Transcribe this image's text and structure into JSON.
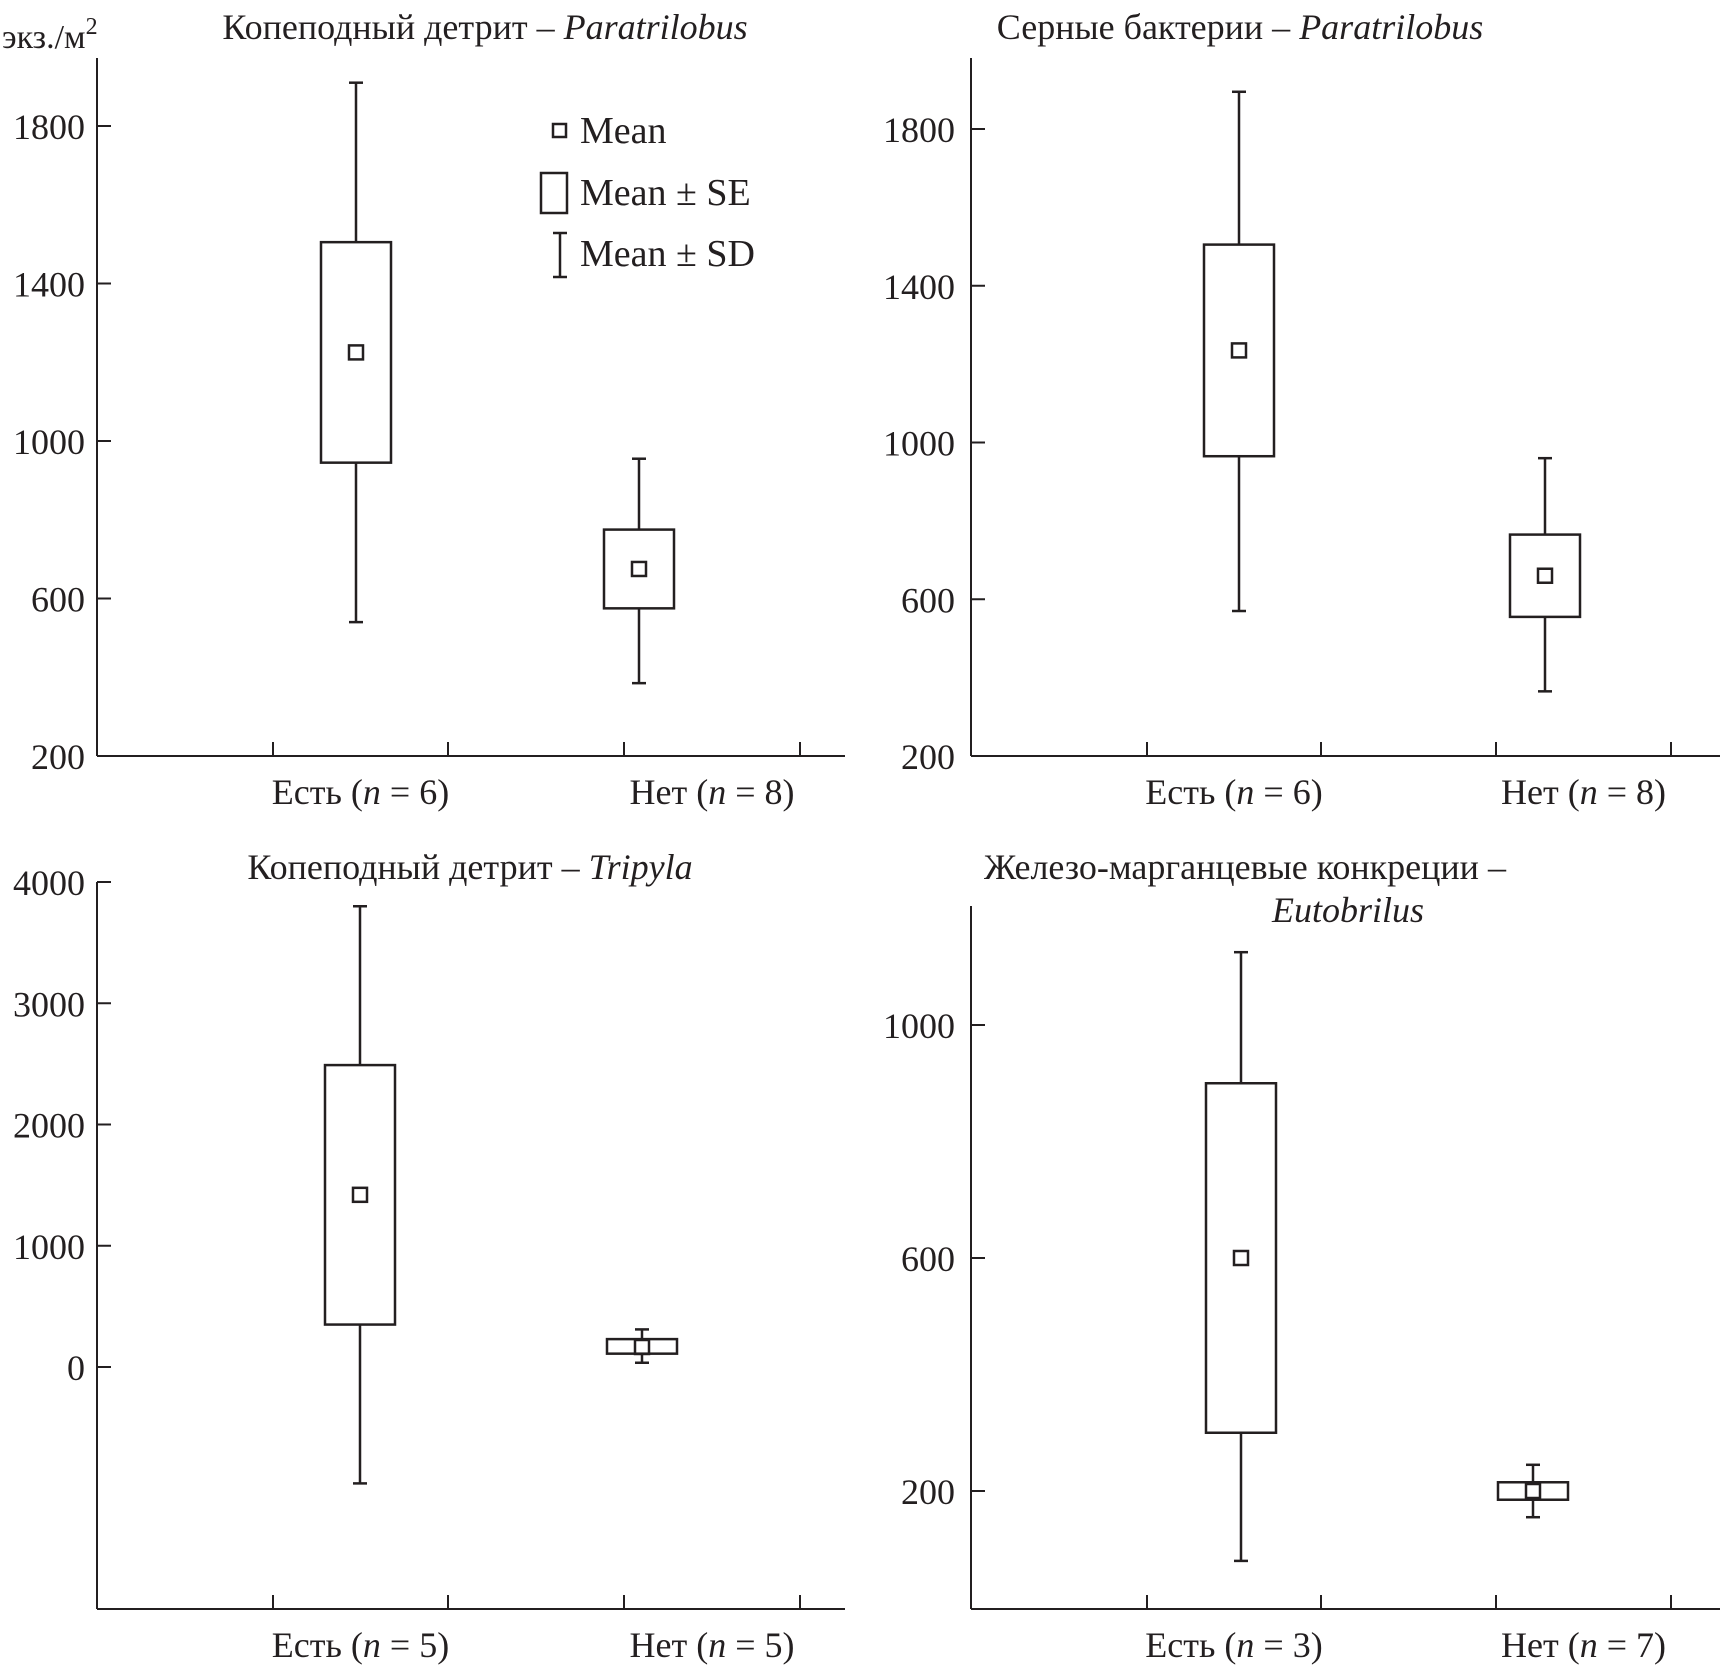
{
  "unit_label": "экз./м",
  "unit_sup": "2",
  "legend": {
    "mean": "Mean",
    "se": "Mean ± SE",
    "sd": "Mean ± SD"
  },
  "chart_data": [
    {
      "type": "box",
      "title": "Копеподный детрит – ",
      "title_italic": "Paratrilobus",
      "ylim": [
        200,
        1960
      ],
      "yticks": [
        200,
        600,
        1000,
        1400,
        1800
      ],
      "categories": [
        "Есть (",
        "Нет ("
      ],
      "n_values": [
        "6",
        "8"
      ],
      "series": [
        {
          "name": "Есть",
          "n": 6,
          "mean": 1225,
          "se_low": 945,
          "se_high": 1505,
          "sd_low": 540,
          "sd_high": 1910
        },
        {
          "name": "Нет",
          "n": 8,
          "mean": 675,
          "se_low": 575,
          "se_high": 775,
          "sd_low": 385,
          "sd_high": 955
        }
      ]
    },
    {
      "type": "box",
      "title": "Серные бактерии – ",
      "title_italic": "Paratrilobus",
      "ylim": [
        200,
        1960
      ],
      "yticks": [
        200,
        600,
        1000,
        1400,
        1800
      ],
      "categories": [
        "Есть (",
        "Нет ("
      ],
      "n_values": [
        "6",
        "8"
      ],
      "series": [
        {
          "name": "Есть",
          "n": 6,
          "mean": 1235,
          "se_low": 965,
          "se_high": 1505,
          "sd_low": 570,
          "sd_high": 1895
        },
        {
          "name": "Нет",
          "n": 8,
          "mean": 660,
          "se_low": 555,
          "se_high": 765,
          "sd_low": 365,
          "sd_high": 960
        }
      ]
    },
    {
      "type": "box",
      "title": "Копеподный детрит – ",
      "title_italic": "Tripyla",
      "ylim": [
        -1980,
        4000
      ],
      "yticks": [
        0,
        1000,
        2000,
        3000,
        4000
      ],
      "categories": [
        "Есть (",
        "Нет ("
      ],
      "n_values": [
        "5",
        "5"
      ],
      "series": [
        {
          "name": "Есть",
          "n": 5,
          "mean": 1420,
          "se_low": 350,
          "se_high": 2490,
          "sd_low": -960,
          "sd_high": 3800
        },
        {
          "name": "Нет",
          "n": 5,
          "mean": 165,
          "se_low": 110,
          "se_high": 230,
          "sd_low": 35,
          "sd_high": 310
        }
      ]
    },
    {
      "type": "box",
      "title": "Железо-марганцевые конкреции –",
      "title_line2": "Eutobrilus",
      "ylim": [
        0,
        1200
      ],
      "yticks": [
        200,
        600,
        1000
      ],
      "categories": [
        "Есть (",
        "Нет ("
      ],
      "n_values": [
        "3",
        "7"
      ],
      "series": [
        {
          "name": "Есть",
          "n": 3,
          "mean": 600,
          "se_low": 300,
          "se_high": 900,
          "sd_low": 80,
          "sd_high": 1125
        },
        {
          "name": "Нет",
          "n": 7,
          "mean": 200,
          "se_low": 185,
          "se_high": 215,
          "sd_low": 155,
          "sd_high": 245
        }
      ]
    }
  ]
}
